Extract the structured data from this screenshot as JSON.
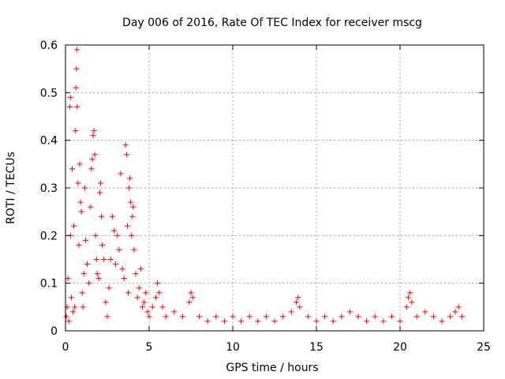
{
  "chart_data": {
    "type": "scatter",
    "title": "Day 006 of 2016, Rate Of TEC Index for receiver mscg",
    "xlabel": "GPS time / hours",
    "ylabel": "ROTI / TECUs",
    "xlim": [
      0,
      25
    ],
    "ylim": [
      0,
      0.6
    ],
    "xticks": [
      0,
      5,
      10,
      15,
      20,
      25
    ],
    "xtick_labels": [
      "0",
      "5",
      "10",
      "15",
      "20",
      "25"
    ],
    "yticks": [
      0,
      0.1,
      0.2,
      0.3,
      0.4,
      0.5,
      0.6
    ],
    "ytick_labels": [
      "0",
      "0.1",
      "0.2",
      "0.3",
      "0.4",
      "0.5",
      "0.6"
    ],
    "grid": true,
    "marker": "+",
    "marker_color": "#ff0000",
    "series": [
      {
        "name": "ROTI",
        "points": [
          [
            0.05,
            0.03
          ],
          [
            0.1,
            0.05
          ],
          [
            0.15,
            0.11
          ],
          [
            0.2,
            0.02
          ],
          [
            0.25,
            0.47
          ],
          [
            0.3,
            0.49
          ],
          [
            0.3,
            0.2
          ],
          [
            0.35,
            0.07
          ],
          [
            0.4,
            0.34
          ],
          [
            0.45,
            0.04
          ],
          [
            0.5,
            0.22
          ],
          [
            0.55,
            0.05
          ],
          [
            0.6,
            0.42
          ],
          [
            0.62,
            0.51
          ],
          [
            0.65,
            0.55
          ],
          [
            0.68,
            0.59
          ],
          [
            0.7,
            0.47
          ],
          [
            0.75,
            0.31
          ],
          [
            0.8,
            0.18
          ],
          [
            0.85,
            0.35
          ],
          [
            0.9,
            0.27
          ],
          [
            0.95,
            0.25
          ],
          [
            1.0,
            0.08
          ],
          [
            1.05,
            0.05
          ],
          [
            1.1,
            0.12
          ],
          [
            1.15,
            0.3
          ],
          [
            1.2,
            0.19
          ],
          [
            1.3,
            0.14
          ],
          [
            1.4,
            0.1
          ],
          [
            1.5,
            0.26
          ],
          [
            1.55,
            0.34
          ],
          [
            1.6,
            0.36
          ],
          [
            1.65,
            0.41
          ],
          [
            1.7,
            0.42
          ],
          [
            1.75,
            0.37
          ],
          [
            1.8,
            0.2
          ],
          [
            1.85,
            0.15
          ],
          [
            1.9,
            0.12
          ],
          [
            2.0,
            0.11
          ],
          [
            2.05,
            0.29
          ],
          [
            2.1,
            0.31
          ],
          [
            2.15,
            0.24
          ],
          [
            2.2,
            0.18
          ],
          [
            2.3,
            0.15
          ],
          [
            2.4,
            0.06
          ],
          [
            2.5,
            0.03
          ],
          [
            2.6,
            0.09
          ],
          [
            2.7,
            0.15
          ],
          [
            2.8,
            0.24
          ],
          [
            2.9,
            0.21
          ],
          [
            3.0,
            0.14
          ],
          [
            3.1,
            0.2
          ],
          [
            3.2,
            0.17
          ],
          [
            3.3,
            0.33
          ],
          [
            3.4,
            0.13
          ],
          [
            3.5,
            0.11
          ],
          [
            3.6,
            0.39
          ],
          [
            3.65,
            0.37
          ],
          [
            3.7,
            0.22
          ],
          [
            3.75,
            0.08
          ],
          [
            3.8,
            0.3
          ],
          [
            3.85,
            0.32
          ],
          [
            3.9,
            0.27
          ],
          [
            3.95,
            0.2
          ],
          [
            4.0,
            0.24
          ],
          [
            4.05,
            0.26
          ],
          [
            4.1,
            0.17
          ],
          [
            4.2,
            0.12
          ],
          [
            4.3,
            0.07
          ],
          [
            4.4,
            0.09
          ],
          [
            4.5,
            0.13
          ],
          [
            4.6,
            0.05
          ],
          [
            4.7,
            0.06
          ],
          [
            4.8,
            0.08
          ],
          [
            4.9,
            0.04
          ],
          [
            5.0,
            0.03
          ],
          [
            5.2,
            0.05
          ],
          [
            5.4,
            0.07
          ],
          [
            5.5,
            0.1
          ],
          [
            5.6,
            0.08
          ],
          [
            5.8,
            0.05
          ],
          [
            6.0,
            0.03
          ],
          [
            6.5,
            0.04
          ],
          [
            7.0,
            0.03
          ],
          [
            7.4,
            0.06
          ],
          [
            7.5,
            0.08
          ],
          [
            7.6,
            0.07
          ],
          [
            8.0,
            0.03
          ],
          [
            8.5,
            0.02
          ],
          [
            9.0,
            0.03
          ],
          [
            9.5,
            0.02
          ],
          [
            10.0,
            0.03
          ],
          [
            10.5,
            0.02
          ],
          [
            11.0,
            0.03
          ],
          [
            11.5,
            0.02
          ],
          [
            12.0,
            0.03
          ],
          [
            12.5,
            0.02
          ],
          [
            13.0,
            0.03
          ],
          [
            13.5,
            0.04
          ],
          [
            13.8,
            0.06
          ],
          [
            13.9,
            0.07
          ],
          [
            14.0,
            0.05
          ],
          [
            14.5,
            0.03
          ],
          [
            15.0,
            0.02
          ],
          [
            15.5,
            0.03
          ],
          [
            16.0,
            0.02
          ],
          [
            16.5,
            0.03
          ],
          [
            17.0,
            0.04
          ],
          [
            17.5,
            0.03
          ],
          [
            18.0,
            0.02
          ],
          [
            18.5,
            0.03
          ],
          [
            19.0,
            0.02
          ],
          [
            19.5,
            0.03
          ],
          [
            20.0,
            0.02
          ],
          [
            20.4,
            0.05
          ],
          [
            20.5,
            0.07
          ],
          [
            20.6,
            0.08
          ],
          [
            20.7,
            0.06
          ],
          [
            21.0,
            0.03
          ],
          [
            21.5,
            0.04
          ],
          [
            22.0,
            0.03
          ],
          [
            22.5,
            0.02
          ],
          [
            23.0,
            0.03
          ],
          [
            23.3,
            0.04
          ],
          [
            23.5,
            0.05
          ],
          [
            23.7,
            0.03
          ]
        ]
      }
    ]
  }
}
